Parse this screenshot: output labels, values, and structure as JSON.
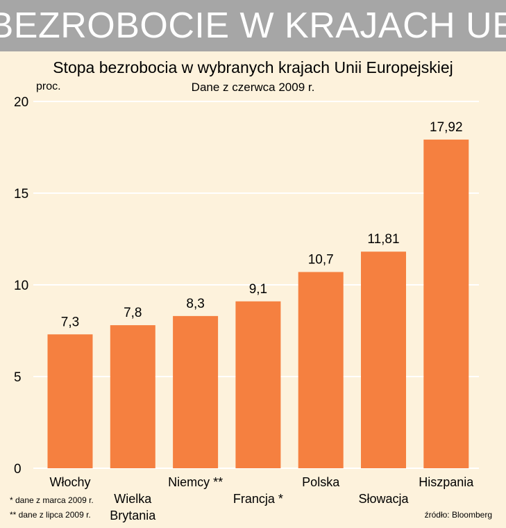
{
  "banner": {
    "title": "BEZROBOCIE W KRAJACH UE"
  },
  "chart_data": {
    "type": "bar",
    "title": "Stopa bezrobocia w wybranych krajach Unii Europejskiej",
    "subtitle": "Dane z czerwca 2009 r.",
    "ylabel": "proc.",
    "ylim": [
      0,
      20
    ],
    "yticks": [
      "0",
      "5",
      "10",
      "15",
      "20"
    ],
    "grid": true,
    "categories": [
      [
        "Włochy"
      ],
      [
        "Wielka",
        "Brytania"
      ],
      [
        "Niemcy **"
      ],
      [
        "Francja *"
      ],
      [
        "Polska"
      ],
      [
        "Słowacja"
      ],
      [
        "Hiszpania"
      ]
    ],
    "values": [
      7.3,
      7.8,
      8.3,
      9.1,
      10.7,
      11.81,
      17.92
    ],
    "value_labels": [
      "7,3",
      "7,8",
      "8,3",
      "9,1",
      "10,7",
      "11,81",
      "17,92"
    ],
    "bar_color": "#f58040"
  },
  "footnotes": {
    "note1": "* dane z marca 2009 r.",
    "note2": "** dane z lipca 2009 r.",
    "source": "źródło: Bloomberg"
  }
}
